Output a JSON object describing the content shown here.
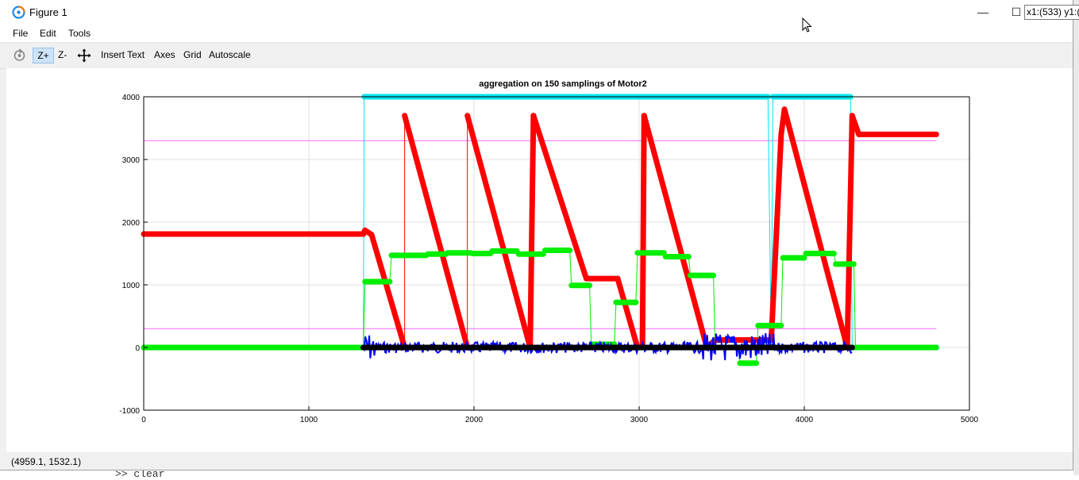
{
  "window": {
    "title": "Figure 1",
    "minimize_glyph": "—",
    "maximize_glyph": "☐",
    "close_glyph": "✕"
  },
  "menu": [
    "File",
    "Edit",
    "Tools"
  ],
  "toolbar": {
    "rotate_icon": "rotate-icon",
    "zoom_in": "Z+",
    "zoom_out": "Z-",
    "pan_icon": "pan-icon",
    "insert_text": "Insert Text",
    "axes": "Axes",
    "grid": "Grid",
    "autoscale": "Autoscale"
  },
  "tooltip": "x1:(533) y1:(",
  "status": "(4959.1, 1532.1)",
  "background_command": ">> clear",
  "colors": {
    "red": "#ff0000",
    "green": "#00ee00",
    "blue": "#0000ff",
    "black": "#000000",
    "cyan": "#00e5ee",
    "magenta": "#ff66ff"
  },
  "chart_data": {
    "type": "line",
    "title": "aggregation on 150 samplings of Motor2",
    "xlim": [
      0,
      5000
    ],
    "ylim": [
      -1000,
      4000
    ],
    "xticks": [
      0,
      1000,
      2000,
      3000,
      4000,
      5000
    ],
    "yticks": [
      -1000,
      0,
      1000,
      2000,
      3000,
      4000
    ],
    "grid": true,
    "series": [
      {
        "color": "#ff00ff",
        "style": "line",
        "x": [
          0,
          4800
        ],
        "y": [
          3300,
          3300
        ]
      },
      {
        "color": "#ff00ff",
        "style": "line",
        "x": [
          0,
          4800
        ],
        "y": [
          300,
          300
        ]
      },
      {
        "color": "#00e5ee",
        "style": "step-markers",
        "x": [
          1330,
          1335,
          3780,
          3800,
          3810,
          4280,
          4290,
          4800
        ],
        "y": [
          0,
          4000,
          4000,
          0,
          4000,
          4000,
          0,
          0
        ]
      },
      {
        "color": "#ff0000",
        "style": "markers",
        "x": [
          0,
          1330,
          1340,
          1380,
          1580,
          1580,
          1960,
          1960,
          2340,
          2360,
          2680,
          2870,
          2990,
          3020,
          3030,
          3410,
          3460,
          3800,
          3860,
          3880,
          4260,
          4290,
          4330,
          4800
        ],
        "y": [
          1810,
          1810,
          1870,
          1800,
          0,
          3700,
          0,
          3700,
          0,
          3700,
          1100,
          1100,
          0,
          0,
          3700,
          0,
          120,
          120,
          3400,
          3800,
          0,
          3700,
          3400,
          3400
        ]
      },
      {
        "color": "#00ee00",
        "style": "step-markers",
        "x": [
          0,
          1330,
          1340,
          1490,
          1500,
          1710,
          1720,
          1830,
          1840,
          1980,
          1990,
          2100,
          2110,
          2260,
          2270,
          2420,
          2430,
          2580,
          2590,
          2700,
          2710,
          2850,
          2860,
          2980,
          2990,
          3150,
          3160,
          3300,
          3310,
          3450,
          3460,
          3600,
          3610,
          3710,
          3720,
          3860,
          3870,
          4000,
          4010,
          4180,
          4190,
          4300,
          4310,
          4800
        ],
        "y": [
          0,
          0,
          1050,
          1050,
          1470,
          1470,
          1490,
          1490,
          1510,
          1510,
          1500,
          1500,
          1540,
          1540,
          1490,
          1490,
          1550,
          1550,
          990,
          990,
          50,
          50,
          720,
          720,
          1510,
          1510,
          1450,
          1450,
          1150,
          1150,
          0,
          0,
          -250,
          -250,
          350,
          350,
          1430,
          1430,
          1500,
          1500,
          1330,
          1330,
          0,
          0
        ]
      },
      {
        "color": "#0000ff",
        "style": "noise",
        "x": [
          1330,
          4290
        ],
        "y": [
          0,
          0
        ]
      },
      {
        "color": "#000000",
        "style": "markers",
        "x": [
          1330,
          4290
        ],
        "y": [
          0,
          0
        ]
      }
    ]
  }
}
